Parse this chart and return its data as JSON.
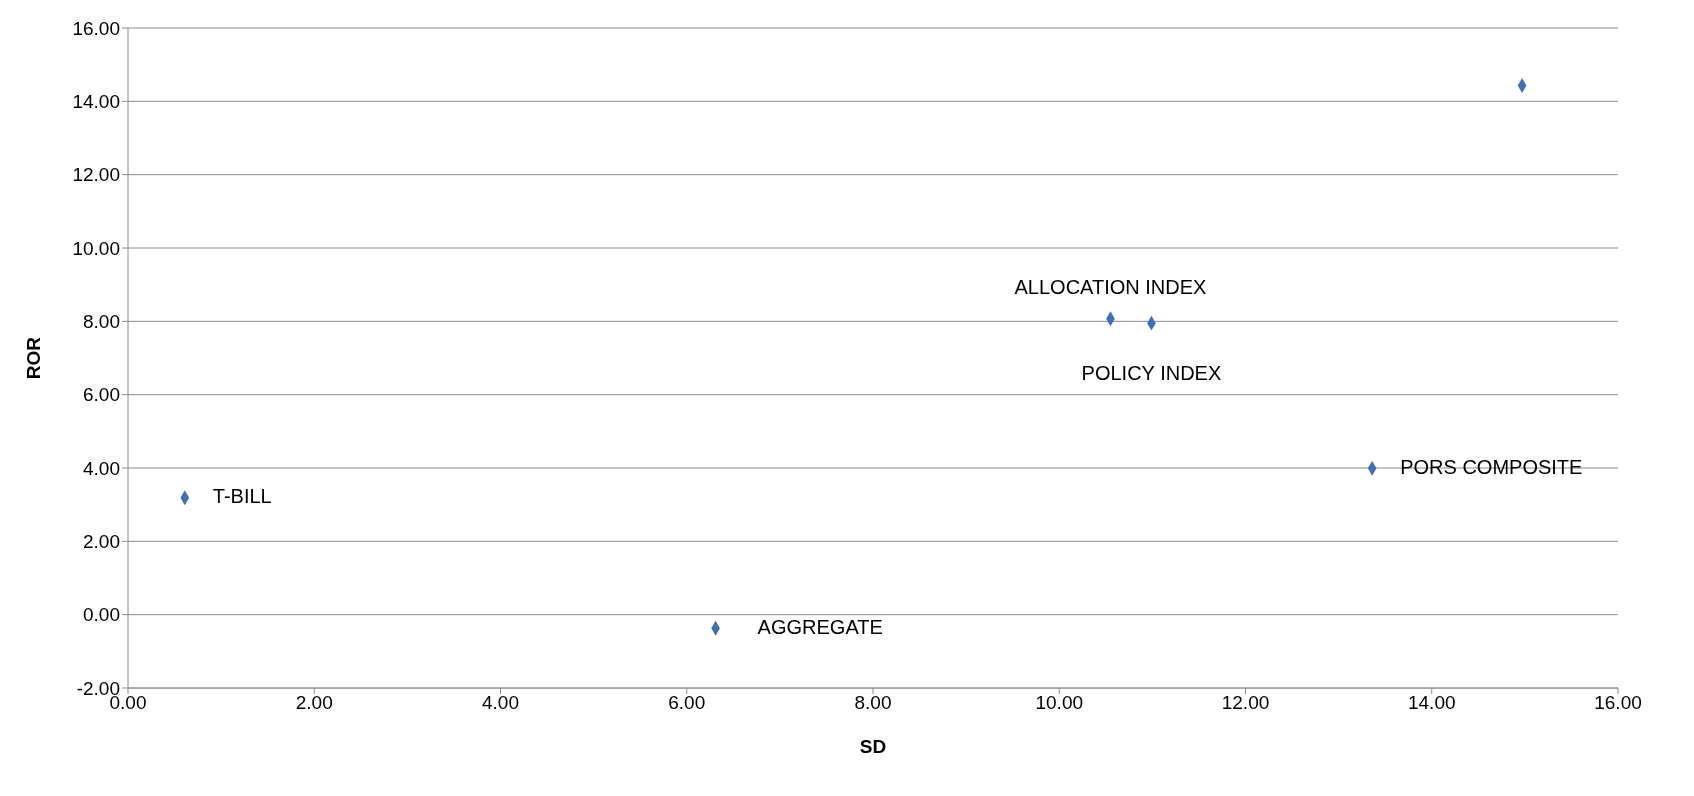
{
  "chart_data": {
    "type": "scatter",
    "xlabel": "SD",
    "ylabel": "ROR",
    "x": [
      0.61,
      6.31,
      10.55,
      10.99,
      13.36,
      14.97
    ],
    "values": [
      3.19,
      -0.37,
      8.07,
      7.95,
      3.99,
      14.43
    ],
    "color": "#3c70b8",
    "marker": "diamond",
    "grid": "y",
    "xlim": [
      0,
      16
    ],
    "xticks": [
      {
        "value": 0,
        "label": "0.00"
      },
      {
        "value": 2,
        "label": "2.00"
      },
      {
        "value": 4,
        "label": "4.00"
      },
      {
        "value": 6,
        "label": "6.00"
      },
      {
        "value": 8,
        "label": "8.00"
      },
      {
        "value": 10,
        "label": "10.00"
      },
      {
        "value": 12,
        "label": "12.00"
      },
      {
        "value": 14,
        "label": "14.00"
      },
      {
        "value": 16,
        "label": "16.00"
      }
    ],
    "ylim": [
      -2,
      16
    ],
    "yticks": [
      {
        "value": -2,
        "label": "-2.00"
      },
      {
        "value": 0,
        "label": "0.00"
      },
      {
        "value": 2,
        "label": "2.00"
      },
      {
        "value": 4,
        "label": "4.00"
      },
      {
        "value": 6,
        "label": "6.00"
      },
      {
        "value": 8,
        "label": "8.00"
      },
      {
        "value": 10,
        "label": "10.00"
      },
      {
        "value": 12,
        "label": "12.00"
      },
      {
        "value": 14,
        "label": "14.00"
      },
      {
        "value": 16,
        "label": "16.00"
      }
    ],
    "annotations": [
      {
        "text": "T-BILL",
        "x": 0.61,
        "y": 3.19
      },
      {
        "text": "AGGREGATE",
        "x": 6.31,
        "y": -0.37
      },
      {
        "text": "ALLOCATION INDEX",
        "x": 10.55,
        "y": 8.07
      },
      {
        "text": "POLICY INDEX",
        "x": 10.99,
        "y": 7.95
      },
      {
        "text": "PORS COMPOSITE",
        "x": 13.36,
        "y": 3.99
      }
    ]
  }
}
